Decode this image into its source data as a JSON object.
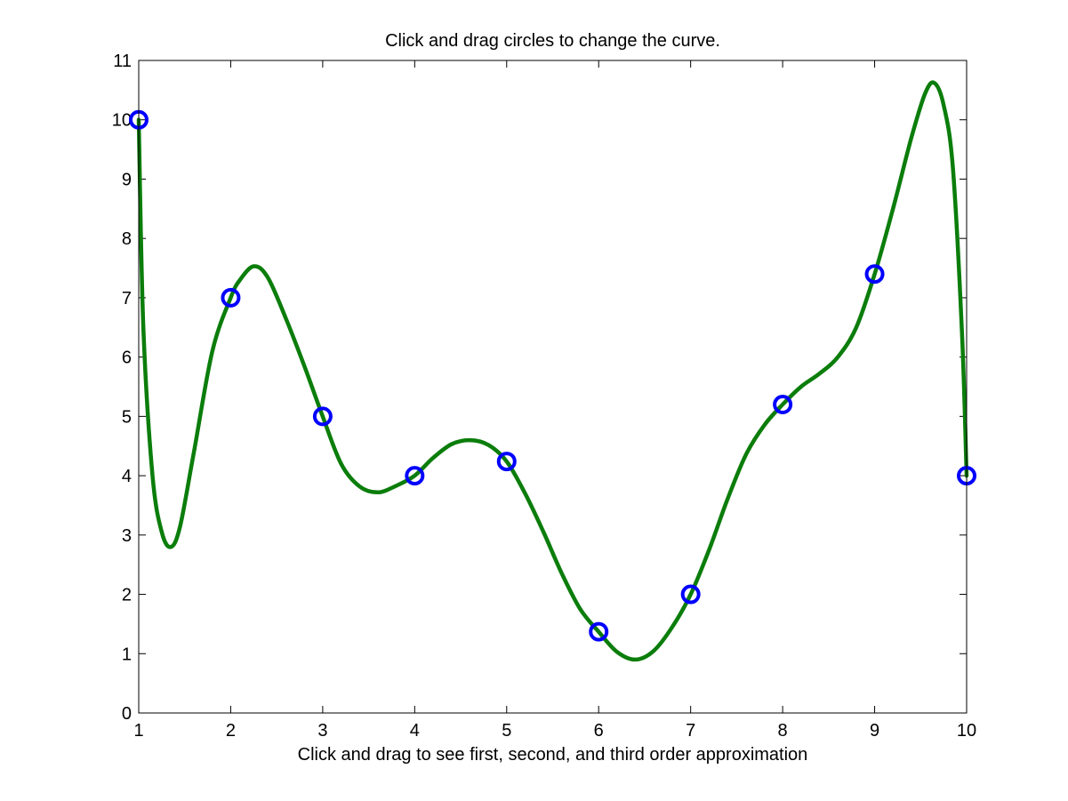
{
  "chart_data": {
    "type": "line",
    "title": "Click and drag circles to change the curve.",
    "xlabel": "Click and drag to see first, second, and third order approximation",
    "ylabel": "",
    "xlim": [
      1,
      10
    ],
    "ylim": [
      0,
      11
    ],
    "xticks": [
      1,
      2,
      3,
      4,
      5,
      6,
      7,
      8,
      9,
      10
    ],
    "yticks": [
      0,
      1,
      2,
      3,
      4,
      5,
      6,
      7,
      8,
      9,
      10,
      11
    ],
    "grid": false,
    "series": [
      {
        "kind": "control-points",
        "color": "#0000ff",
        "marker": "circle",
        "x": [
          1,
          2,
          3,
          4,
          5,
          6,
          7,
          8,
          9,
          10
        ],
        "y": [
          10,
          7,
          5,
          4,
          4.24,
          1.37,
          2,
          5.2,
          7.4,
          4
        ]
      },
      {
        "kind": "curve",
        "color": "#0b7d0b",
        "x": [
          1,
          1.05,
          1.15,
          1.25,
          1.35,
          1.45,
          1.6,
          1.8,
          2,
          2.1,
          2.25,
          2.4,
          2.6,
          2.8,
          3,
          3.2,
          3.4,
          3.6,
          3.8,
          4,
          4.2,
          4.4,
          4.6,
          4.8,
          5,
          5.2,
          5.4,
          5.6,
          5.8,
          6,
          6.2,
          6.4,
          6.6,
          6.8,
          7,
          7.2,
          7.4,
          7.6,
          7.8,
          8,
          8.2,
          8.4,
          8.6,
          8.8,
          9,
          9.2,
          9.4,
          9.55,
          9.65,
          9.75,
          9.85,
          9.95,
          10
        ],
        "y": [
          10,
          6.5,
          4,
          3.05,
          2.8,
          3.15,
          4.4,
          6.1,
          7,
          7.3,
          7.53,
          7.35,
          6.65,
          5.85,
          5,
          4.2,
          3.82,
          3.72,
          3.83,
          4,
          4.3,
          4.53,
          4.6,
          4.52,
          4.24,
          3.7,
          3.05,
          2.35,
          1.75,
          1.37,
          1.03,
          0.9,
          1.05,
          1.45,
          2,
          2.75,
          3.6,
          4.35,
          4.85,
          5.2,
          5.5,
          5.72,
          6,
          6.5,
          7.4,
          8.5,
          9.7,
          10.45,
          10.62,
          10.25,
          9.2,
          6.4,
          4
        ]
      }
    ]
  }
}
